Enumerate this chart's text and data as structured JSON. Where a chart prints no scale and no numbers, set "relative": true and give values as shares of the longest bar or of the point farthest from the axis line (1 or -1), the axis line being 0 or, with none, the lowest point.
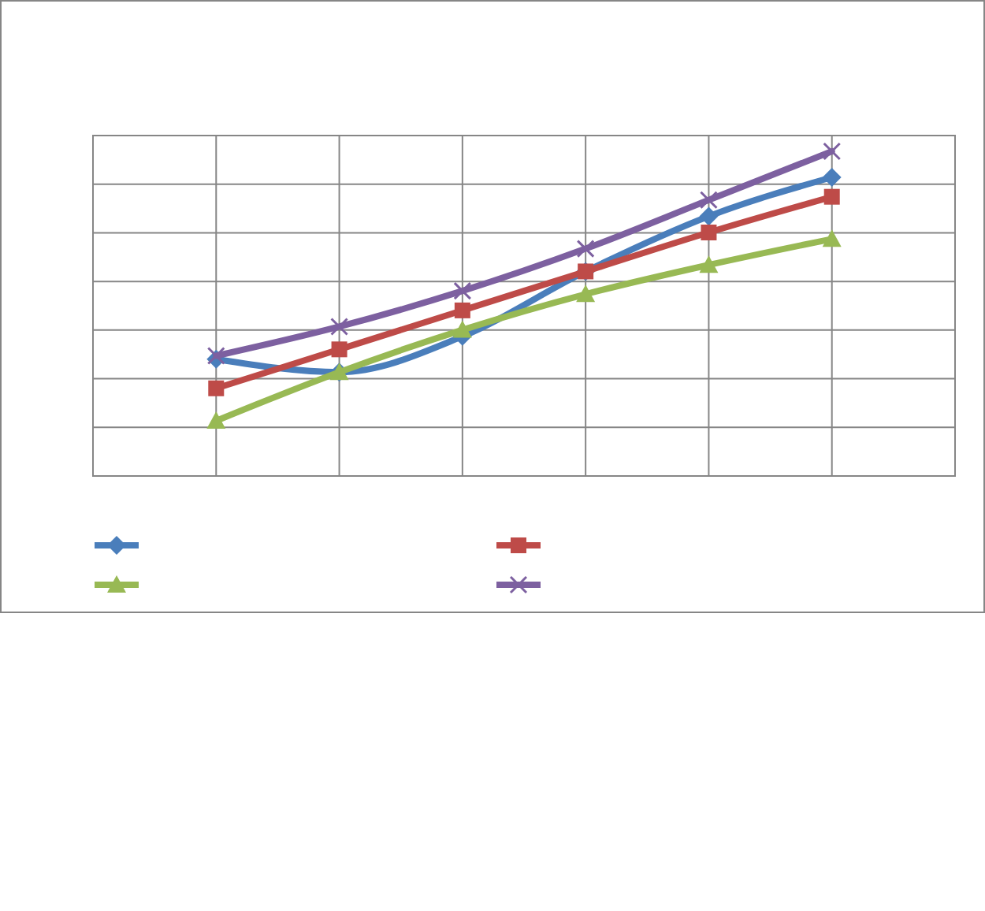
{
  "chart_data": {
    "type": "line",
    "relative": true,
    "grid": true,
    "categories": [
      null,
      null,
      null,
      null,
      null,
      null
    ],
    "series": [
      {
        "color": "#4a7ebb",
        "marker": "diamond",
        "values": [
          0.36,
          0.32,
          0.43,
          0.63,
          0.8,
          0.92
        ]
      },
      {
        "color": "#be4b48",
        "marker": "square",
        "values": [
          0.27,
          0.39,
          0.51,
          0.63,
          0.75,
          0.86
        ]
      },
      {
        "color": "#98b954",
        "marker": "triangle",
        "values": [
          0.17,
          0.32,
          0.45,
          0.56,
          0.65,
          0.73
        ]
      },
      {
        "color": "#7d60a0",
        "marker": "cross",
        "values": [
          0.37,
          0.46,
          0.57,
          0.7,
          0.85,
          1
        ]
      }
    ]
  }
}
